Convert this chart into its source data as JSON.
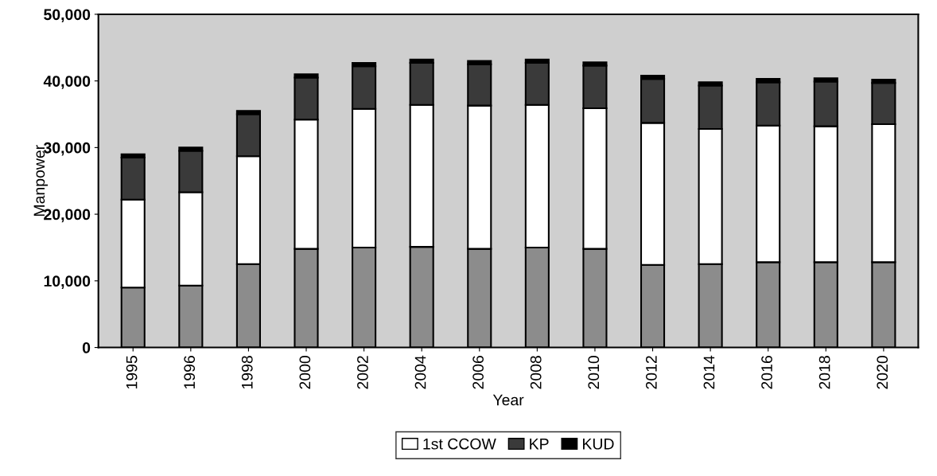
{
  "chart_data": {
    "type": "bar",
    "stacked": true,
    "xlabel": "Year",
    "ylabel": "Manpower",
    "categories": [
      "1995",
      "1996",
      "1998",
      "2000",
      "2002",
      "2004",
      "2006",
      "2008",
      "2010",
      "2012",
      "2014",
      "2016",
      "2018",
      "2020"
    ],
    "series": [
      {
        "color": "#8c8c8c",
        "values": [
          9000,
          9300,
          12500,
          14800,
          15000,
          15100,
          14800,
          15000,
          14800,
          12400,
          12500,
          12800,
          12800,
          12800
        ]
      },
      {
        "name": "1st CCOW",
        "color": "#ffffff",
        "values": [
          13200,
          14000,
          16200,
          19400,
          20800,
          21300,
          21500,
          21400,
          21100,
          21300,
          20300,
          20500,
          20400,
          20700
        ]
      },
      {
        "name": "KP",
        "color": "#3a3a3a",
        "values": [
          6300,
          6200,
          6300,
          6300,
          6400,
          6300,
          6200,
          6300,
          6400,
          6600,
          6500,
          6500,
          6700,
          6200
        ]
      },
      {
        "name": "KUD",
        "color": "#000000",
        "values": [
          500,
          500,
          500,
          500,
          500,
          500,
          500,
          500,
          500,
          500,
          500,
          500,
          500,
          500
        ]
      }
    ],
    "ylim": [
      0,
      50000
    ],
    "yticks": [
      {
        "value": 0,
        "label": "0"
      },
      {
        "value": 10000,
        "label": "10,000"
      },
      {
        "value": 20000,
        "label": "20,000"
      },
      {
        "value": 30000,
        "label": "30,000"
      },
      {
        "value": 40000,
        "label": "40,000"
      },
      {
        "value": 50000,
        "label": "50,000"
      }
    ],
    "grid": false,
    "legend": "bottom"
  }
}
